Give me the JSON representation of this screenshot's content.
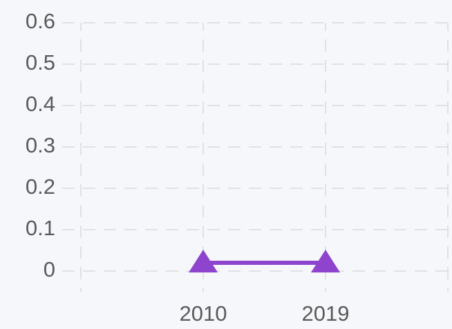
{
  "chart_data": {
    "type": "line",
    "categories": [
      null,
      "2010",
      "2019",
      null
    ],
    "series": [
      {
        "color": "#8e44cc",
        "values": [
          null,
          0.02,
          0.02,
          null
        ]
      }
    ],
    "ylim": [
      0,
      0.6
    ],
    "yticks": [
      0,
      0.1,
      0.2,
      0.3,
      0.4,
      0.5,
      0.6
    ],
    "grid": true
  }
}
